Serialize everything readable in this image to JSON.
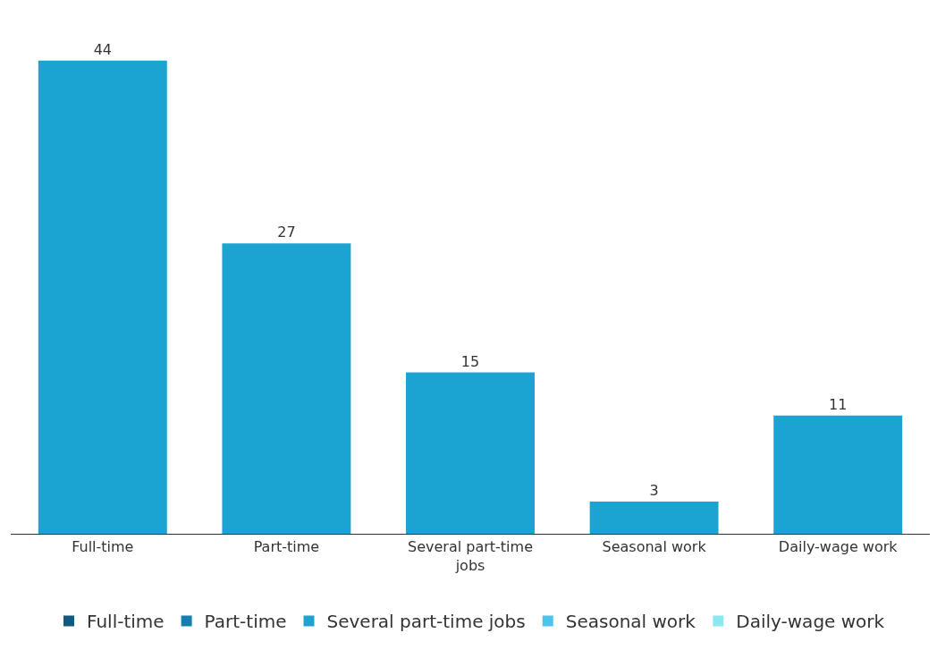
{
  "chart_data": {
    "type": "bar",
    "categories": [
      "Full-time",
      "Part-time",
      "Several part-time jobs",
      "Seasonal work",
      "Daily-wage work"
    ],
    "series": [
      {
        "name": "Full-time",
        "color": "#0e5a82",
        "colors": [
          "#1ba3d1",
          null,
          null,
          null,
          null
        ],
        "values": [
          44,
          null,
          null,
          null,
          null
        ]
      },
      {
        "name": "Part-time",
        "color": "#137fae",
        "colors": [
          null,
          "#1ba3d1",
          null,
          null,
          null
        ],
        "values": [
          null,
          27,
          null,
          null,
          null
        ]
      },
      {
        "name": "Several part-time jobs",
        "color": "#1fa2d0",
        "colors": [
          null,
          null,
          "#1ba3d1",
          null,
          null
        ],
        "values": [
          null,
          null,
          15,
          null,
          null
        ]
      },
      {
        "name": "Seasonal work",
        "color": "#4cc4ec",
        "colors": [
          null,
          null,
          null,
          "#1ba3d1",
          null
        ],
        "values": [
          null,
          null,
          null,
          3,
          null
        ]
      },
      {
        "name": "Daily-wage work",
        "color": "#8ce8f0",
        "colors": [
          null,
          null,
          null,
          null,
          "#1ba3d1"
        ],
        "values": [
          null,
          null,
          null,
          null,
          11
        ]
      }
    ],
    "data_labels": true,
    "legend": "bottom"
  }
}
